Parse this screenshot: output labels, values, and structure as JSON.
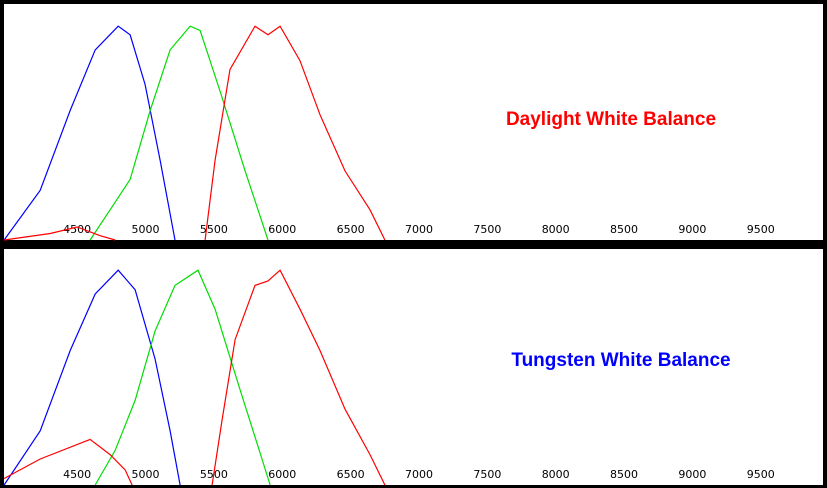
{
  "chart_data": [
    {
      "type": "line",
      "annotation": "Daylight White Balance",
      "annotation_color": "#ff0000",
      "xlim": [
        3965,
        9955
      ],
      "ylim": [
        0,
        100
      ],
      "xticks": [
        4500,
        5000,
        5500,
        6000,
        6500,
        7000,
        7500,
        8000,
        8500,
        9000,
        9500
      ],
      "series": [
        {
          "color": "#0000ff",
          "x": [
            3966,
            4230,
            4449,
            4632,
            4800,
            4887,
            4997,
            5107,
            5216
          ],
          "values": [
            0,
            23,
            60,
            88,
            99,
            95,
            72,
            37,
            0
          ]
        },
        {
          "color": "#00dd00",
          "x": [
            4595,
            4741,
            4887,
            5034,
            5180,
            5326,
            5399,
            5545,
            5728,
            5896
          ],
          "values": [
            0,
            14,
            28,
            60,
            88,
            99,
            97,
            69,
            32,
            0
          ]
        },
        {
          "color": "#ff0000",
          "x": [
            3966,
            4303,
            4500,
            4668,
            4778,
            5100,
            5436,
            5509,
            5618,
            5801,
            5896,
            5984,
            6130,
            6276,
            6459,
            6642,
            6751
          ],
          "values": [
            0,
            3,
            6,
            2,
            0,
            null,
            0,
            37,
            79,
            99,
            95,
            99,
            83,
            58,
            32,
            14,
            0
          ]
        }
      ]
    },
    {
      "type": "line",
      "annotation": "Tungsten White Balance",
      "annotation_color": "#0000ff",
      "xlim": [
        3965,
        9955
      ],
      "ylim": [
        0,
        100
      ],
      "xticks": [
        4500,
        5000,
        5500,
        6000,
        6500,
        7000,
        7500,
        8000,
        8500,
        9000,
        9500
      ],
      "series": [
        {
          "color": "#0000ff",
          "x": [
            3966,
            4230,
            4449,
            4632,
            4800,
            4924,
            5070,
            5180,
            5253
          ],
          "values": [
            0,
            25,
            62,
            88,
            99,
            90,
            58,
            25,
            0
          ]
        },
        {
          "color": "#00dd00",
          "x": [
            4632,
            4778,
            4924,
            5070,
            5216,
            5384,
            5509,
            5691,
            5852,
            5911
          ],
          "values": [
            0,
            16,
            39,
            71,
            92,
            99,
            81,
            44,
            12,
            0
          ]
        },
        {
          "color": "#ff0000",
          "x": [
            3966,
            4230,
            4595,
            4741,
            4851,
            4902,
            5200,
            5487,
            5560,
            5655,
            5801,
            5896,
            5984,
            6130,
            6276,
            6459,
            6642,
            6751
          ],
          "values": [
            3,
            12,
            21,
            14,
            7,
            0,
            null,
            0,
            30,
            67,
            92,
            94,
            99,
            81,
            62,
            35,
            14,
            0
          ]
        }
      ]
    }
  ]
}
